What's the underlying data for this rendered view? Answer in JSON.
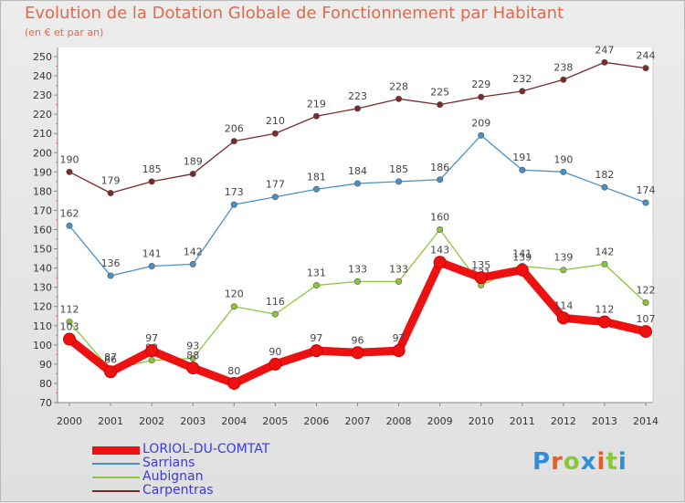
{
  "title": "Evolution de la Dotation Globale de Fonctionnement par Habitant",
  "subtitle": "(en € et par an)",
  "logo": {
    "text": "Proxiti",
    "letters": [
      {
        "ch": "P",
        "color": "#2f8fd6"
      },
      {
        "ch": "r",
        "color": "#e85c2a"
      },
      {
        "ch": "o",
        "color": "#8cc63f"
      },
      {
        "ch": "x",
        "color": "#2f8fd6"
      },
      {
        "ch": "i",
        "color": "#e85c2a"
      },
      {
        "ch": "t",
        "color": "#8cc63f"
      },
      {
        "ch": "i",
        "color": "#2f8fd6"
      }
    ]
  },
  "chart_data": {
    "type": "line",
    "title": "Evolution de la Dotation Globale de Fonctionnement par Habitant",
    "ylabel": "(en € et par an)",
    "xlabel": "",
    "x": [
      "2000",
      "2001",
      "2002",
      "2003",
      "2004",
      "2005",
      "2006",
      "2007",
      "2008",
      "2009",
      "2010",
      "2011",
      "2012",
      "2013",
      "2014"
    ],
    "ylim": [
      70,
      250
    ],
    "ytick_step": 10,
    "grid": false,
    "legend_position": "bottom-left",
    "series": [
      {
        "name": "LORIOL-DU-COMTAT",
        "color": "#ee1111",
        "emphasis": true,
        "values": [
          103,
          86,
          97,
          88,
          80,
          90,
          97,
          96,
          97,
          143,
          135,
          139,
          114,
          112,
          107
        ]
      },
      {
        "name": "Sarrians",
        "color": "#4a90c8",
        "emphasis": false,
        "values": [
          162,
          136,
          141,
          142,
          173,
          177,
          181,
          184,
          185,
          186,
          209,
          191,
          190,
          182,
          174
        ]
      },
      {
        "name": "Aubignan",
        "color": "#8cc63f",
        "emphasis": false,
        "values": [
          112,
          87,
          92,
          93,
          120,
          116,
          131,
          133,
          133,
          160,
          131,
          141,
          139,
          142,
          122
        ]
      },
      {
        "name": "Carpentras",
        "color": "#7a2a2a",
        "emphasis": false,
        "values": [
          190,
          179,
          185,
          189,
          206,
          210,
          219,
          223,
          228,
          225,
          229,
          232,
          238,
          247,
          244
        ]
      }
    ]
  }
}
